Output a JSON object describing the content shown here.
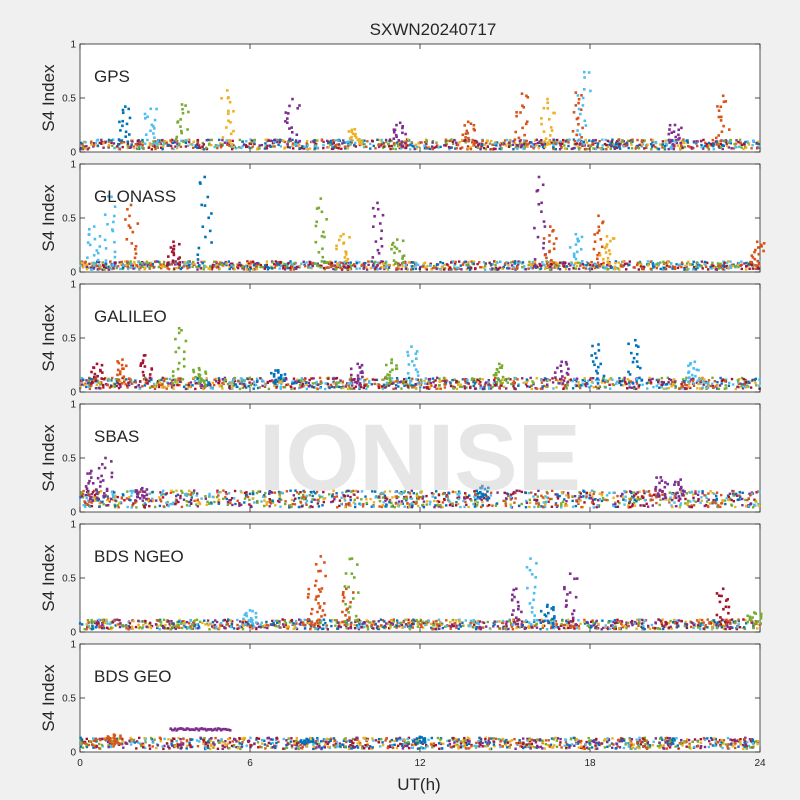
{
  "chart_data": {
    "type": "scatter",
    "title": "SXWN20240717",
    "xlabel": "UT(h)",
    "ylabel": "S4 Index",
    "xlim": [
      0,
      24
    ],
    "ylim": [
      0,
      1
    ],
    "xticks": [
      "0",
      "6",
      "12",
      "18",
      "24"
    ],
    "yticks": [
      "0",
      "0.5",
      "1"
    ],
    "grid": false,
    "watermark": "IONISE",
    "colors": [
      "#0072BD",
      "#D95319",
      "#EDB120",
      "#7E2F8E",
      "#77AC30",
      "#4DBEEE",
      "#A2142F"
    ],
    "panels": [
      {
        "label": "GPS",
        "baseline": 0.07,
        "spikes": [
          {
            "x": 1.6,
            "y": 0.42,
            "color": "#0072BD"
          },
          {
            "x": 2.5,
            "y": 0.4,
            "color": "#4DBEEE"
          },
          {
            "x": 3.6,
            "y": 0.44,
            "color": "#77AC30"
          },
          {
            "x": 5.2,
            "y": 0.57,
            "color": "#EDB120"
          },
          {
            "x": 7.5,
            "y": 0.49,
            "color": "#7E2F8E"
          },
          {
            "x": 9.7,
            "y": 0.21,
            "color": "#EDB120"
          },
          {
            "x": 11.3,
            "y": 0.27,
            "color": "#7E2F8E"
          },
          {
            "x": 13.7,
            "y": 0.28,
            "color": "#D95319"
          },
          {
            "x": 15.6,
            "y": 0.54,
            "color": "#D95319"
          },
          {
            "x": 16.5,
            "y": 0.49,
            "color": "#EDB120"
          },
          {
            "x": 17.5,
            "y": 0.55,
            "color": "#D95319"
          },
          {
            "x": 17.8,
            "y": 0.74,
            "color": "#4DBEEE"
          },
          {
            "x": 21.0,
            "y": 0.25,
            "color": "#7E2F8E"
          },
          {
            "x": 22.7,
            "y": 0.52,
            "color": "#D95319"
          }
        ]
      },
      {
        "label": "GLONASS",
        "baseline": 0.06,
        "spikes": [
          {
            "x": 0.5,
            "y": 0.42,
            "color": "#4DBEEE"
          },
          {
            "x": 1.0,
            "y": 0.7,
            "color": "#4DBEEE"
          },
          {
            "x": 1.8,
            "y": 0.62,
            "color": "#D95319"
          },
          {
            "x": 3.3,
            "y": 0.28,
            "color": "#A2142F"
          },
          {
            "x": 4.4,
            "y": 0.88,
            "color": "#0072BD"
          },
          {
            "x": 8.5,
            "y": 0.68,
            "color": "#77AC30"
          },
          {
            "x": 9.3,
            "y": 0.35,
            "color": "#EDB120"
          },
          {
            "x": 10.5,
            "y": 0.64,
            "color": "#7E2F8E"
          },
          {
            "x": 11.2,
            "y": 0.3,
            "color": "#77AC30"
          },
          {
            "x": 16.2,
            "y": 0.88,
            "color": "#7E2F8E"
          },
          {
            "x": 16.6,
            "y": 0.42,
            "color": "#D95319"
          },
          {
            "x": 17.5,
            "y": 0.35,
            "color": "#4DBEEE"
          },
          {
            "x": 18.3,
            "y": 0.52,
            "color": "#D95319"
          },
          {
            "x": 18.6,
            "y": 0.33,
            "color": "#EDB120"
          },
          {
            "x": 23.9,
            "y": 0.28,
            "color": "#D95319"
          }
        ]
      },
      {
        "label": "GALILEO",
        "baseline": 0.08,
        "spikes": [
          {
            "x": 0.6,
            "y": 0.26,
            "color": "#A2142F"
          },
          {
            "x": 1.5,
            "y": 0.3,
            "color": "#D95319"
          },
          {
            "x": 2.3,
            "y": 0.34,
            "color": "#A2142F"
          },
          {
            "x": 3.5,
            "y": 0.59,
            "color": "#77AC30"
          },
          {
            "x": 4.2,
            "y": 0.22,
            "color": "#77AC30"
          },
          {
            "x": 7.0,
            "y": 0.2,
            "color": "#0072BD"
          },
          {
            "x": 9.8,
            "y": 0.26,
            "color": "#7E2F8E"
          },
          {
            "x": 11.0,
            "y": 0.3,
            "color": "#77AC30"
          },
          {
            "x": 11.7,
            "y": 0.42,
            "color": "#4DBEEE"
          },
          {
            "x": 14.8,
            "y": 0.26,
            "color": "#77AC30"
          },
          {
            "x": 17.0,
            "y": 0.28,
            "color": "#7E2F8E"
          },
          {
            "x": 18.3,
            "y": 0.44,
            "color": "#0072BD"
          },
          {
            "x": 19.6,
            "y": 0.48,
            "color": "#0072BD"
          },
          {
            "x": 21.7,
            "y": 0.28,
            "color": "#4DBEEE"
          }
        ]
      },
      {
        "label": "SBAS",
        "baseline": 0.12,
        "spikes": [
          {
            "x": 0.4,
            "y": 0.38,
            "color": "#7E2F8E"
          },
          {
            "x": 0.9,
            "y": 0.5,
            "color": "#7E2F8E"
          },
          {
            "x": 2.2,
            "y": 0.22,
            "color": "#7E2F8E"
          },
          {
            "x": 14.2,
            "y": 0.24,
            "color": "#0072BD"
          },
          {
            "x": 20.5,
            "y": 0.32,
            "color": "#7E2F8E"
          },
          {
            "x": 21.2,
            "y": 0.3,
            "color": "#7E2F8E"
          }
        ]
      },
      {
        "label": "BDS NGEO",
        "baseline": 0.07,
        "spikes": [
          {
            "x": 6.0,
            "y": 0.2,
            "color": "#4DBEEE"
          },
          {
            "x": 8.3,
            "y": 0.43,
            "color": "#D95319"
          },
          {
            "x": 8.5,
            "y": 0.7,
            "color": "#D95319"
          },
          {
            "x": 9.4,
            "y": 0.4,
            "color": "#D95319"
          },
          {
            "x": 9.6,
            "y": 0.68,
            "color": "#77AC30"
          },
          {
            "x": 15.4,
            "y": 0.4,
            "color": "#7E2F8E"
          },
          {
            "x": 15.9,
            "y": 0.68,
            "color": "#4DBEEE"
          },
          {
            "x": 16.5,
            "y": 0.25,
            "color": "#0072BD"
          },
          {
            "x": 17.3,
            "y": 0.54,
            "color": "#7E2F8E"
          },
          {
            "x": 22.7,
            "y": 0.4,
            "color": "#A2142F"
          },
          {
            "x": 23.8,
            "y": 0.18,
            "color": "#77AC30"
          }
        ]
      },
      {
        "label": "BDS GEO",
        "baseline": 0.08,
        "segments": [
          {
            "x0": 3.2,
            "x1": 5.3,
            "y": 0.21,
            "color": "#7E2F8E"
          }
        ],
        "spikes": [
          {
            "x": 1.2,
            "y": 0.16,
            "color": "#D95319"
          },
          {
            "x": 8.0,
            "y": 0.12,
            "color": "#0072BD"
          },
          {
            "x": 12.0,
            "y": 0.14,
            "color": "#0072BD"
          }
        ]
      }
    ]
  }
}
